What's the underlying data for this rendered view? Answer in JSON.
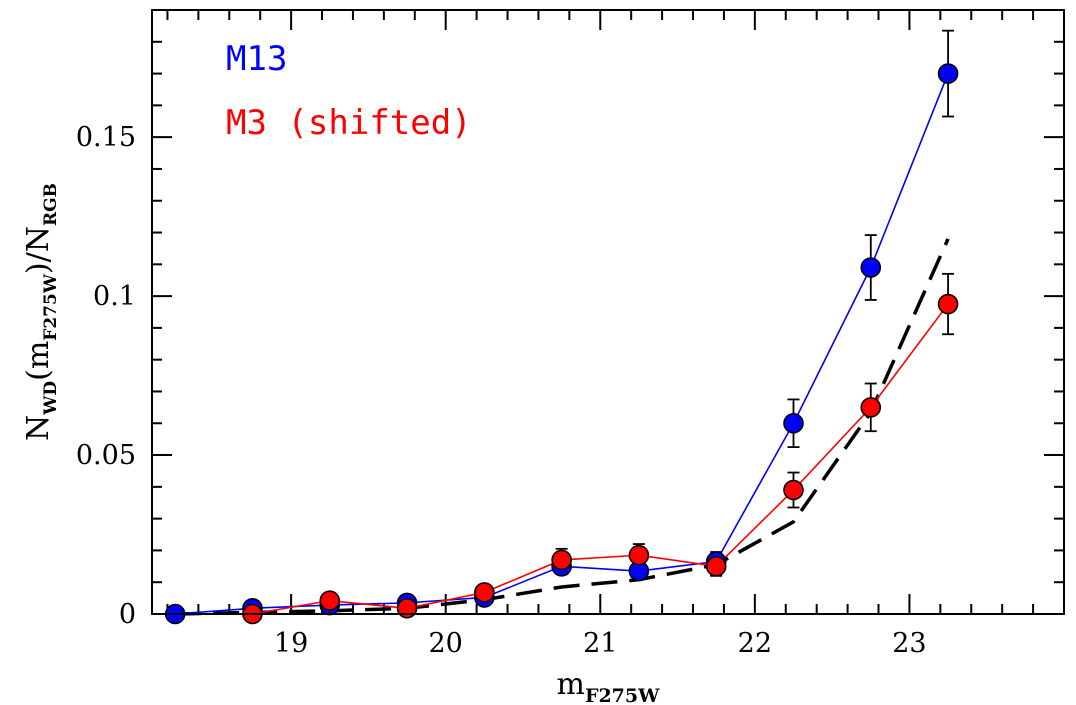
{
  "chart_data": {
    "type": "scatter",
    "xlabel": {
      "main": "m",
      "sub": "F275W"
    },
    "ylabel": {
      "parts": [
        {
          "text": "N"
        },
        {
          "text": "WD",
          "sub": true
        },
        {
          "text": "(m"
        },
        {
          "text": "F275W",
          "sub": true
        },
        {
          "text": ")/N"
        },
        {
          "text": "RGB",
          "sub": true
        }
      ]
    },
    "xlim": [
      18.1,
      24.0
    ],
    "ylim": [
      0,
      0.19
    ],
    "x_ticks": [
      19,
      20,
      21,
      22,
      23
    ],
    "x_tick_labels": [
      "19",
      "20",
      "21",
      "22",
      "23"
    ],
    "y_ticks": [
      0,
      0.05,
      0.1,
      0.15
    ],
    "y_tick_labels": [
      "0",
      "0.05",
      "0.1",
      "0.15"
    ],
    "x_minor_step": 0.2,
    "y_minor_step": 0.01,
    "legend_position": "top-left",
    "series": [
      {
        "name": "M13",
        "color": "#0000ff",
        "points": [
          {
            "x": 18.25,
            "y": 0.0
          },
          {
            "x": 18.75,
            "y": 0.0018
          },
          {
            "x": 19.25,
            "y": 0.0028
          },
          {
            "x": 19.75,
            "y": 0.0035
          },
          {
            "x": 20.25,
            "y": 0.0052,
            "err": 0.0012
          },
          {
            "x": 20.75,
            "y": 0.015,
            "err": 0.0025
          },
          {
            "x": 21.25,
            "y": 0.0135,
            "err": 0.0025
          },
          {
            "x": 21.75,
            "y": 0.0165,
            "err": 0.003
          },
          {
            "x": 22.25,
            "y": 0.06,
            "err": 0.0075
          },
          {
            "x": 22.75,
            "y": 0.109,
            "err": 0.0102
          },
          {
            "x": 23.25,
            "y": 0.17,
            "err": 0.0135
          }
        ]
      },
      {
        "name": "M3 (shifted)",
        "color": "#ff0000",
        "points": [
          {
            "x": 18.75,
            "y": 0.0
          },
          {
            "x": 19.25,
            "y": 0.0042,
            "err": 0.0018
          },
          {
            "x": 19.75,
            "y": 0.0018
          },
          {
            "x": 20.25,
            "y": 0.0068,
            "err": 0.0018
          },
          {
            "x": 20.75,
            "y": 0.017,
            "err": 0.0035
          },
          {
            "x": 21.25,
            "y": 0.0185,
            "err": 0.0035
          },
          {
            "x": 21.75,
            "y": 0.015,
            "err": 0.003
          },
          {
            "x": 22.25,
            "y": 0.039,
            "err": 0.0055
          },
          {
            "x": 22.75,
            "y": 0.065,
            "err": 0.0075
          },
          {
            "x": 23.25,
            "y": 0.0975,
            "err": 0.0095
          }
        ]
      }
    ],
    "model_curve": {
      "style": "dashed",
      "color": "#000000",
      "points": [
        {
          "x": 18.25,
          "y": 0.0
        },
        {
          "x": 18.75,
          "y": 0.0005
        },
        {
          "x": 19.25,
          "y": 0.001
        },
        {
          "x": 19.75,
          "y": 0.0018
        },
        {
          "x": 20.25,
          "y": 0.0045
        },
        {
          "x": 20.75,
          "y": 0.0085
        },
        {
          "x": 21.25,
          "y": 0.0108
        },
        {
          "x": 21.75,
          "y": 0.0155
        },
        {
          "x": 22.25,
          "y": 0.029
        },
        {
          "x": 22.75,
          "y": 0.0635
        },
        {
          "x": 23.25,
          "y": 0.118
        }
      ]
    }
  }
}
